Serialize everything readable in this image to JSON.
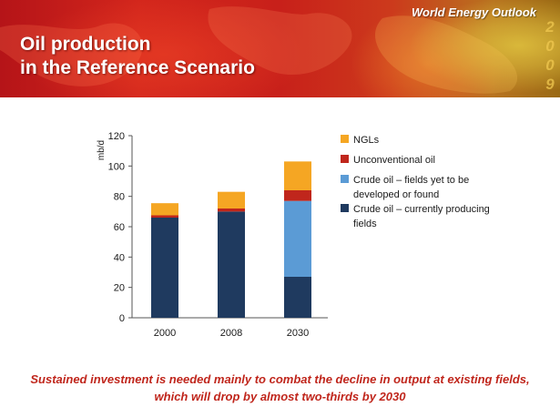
{
  "banner": {
    "title_line1": "Oil production",
    "title_line2": "in the Reference Scenario",
    "brand": "World Energy Outlook",
    "year_digits": [
      "2",
      "0",
      "0",
      "9"
    ]
  },
  "chart_data": {
    "type": "bar",
    "stacked": true,
    "categories": [
      "2000",
      "2008",
      "2030"
    ],
    "ylabel": "mb/d",
    "ylim": [
      0,
      120
    ],
    "yticks": [
      0,
      20,
      40,
      60,
      80,
      100,
      120
    ],
    "grid": false,
    "legend_position": "right",
    "series": [
      {
        "name": "Crude oil – currently producing fields",
        "color": "#1f3a5f",
        "values": [
          66,
          70,
          27
        ]
      },
      {
        "name": "Crude oil – fields yet to be developed or found",
        "color": "#5b9bd5",
        "values": [
          0,
          0,
          50
        ]
      },
      {
        "name": "Unconventional oil",
        "color": "#c0261c",
        "values": [
          1.5,
          2,
          7
        ]
      },
      {
        "name": "NGLs",
        "color": "#f5a623",
        "values": [
          8,
          11,
          19
        ]
      }
    ],
    "legend_order": [
      3,
      2,
      1,
      0
    ]
  },
  "caption": {
    "line1": "Sustained investment is needed mainly to combat the decline in output at existing fields,",
    "line2": "which will drop by almost two-thirds by 2030"
  }
}
